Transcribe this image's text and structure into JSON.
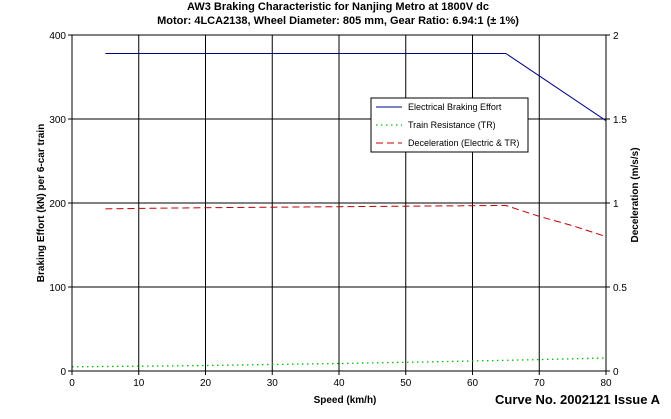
{
  "chart_data": {
    "type": "line",
    "title": "AW3 Braking Characteristic for Nanjing Metro at 1800V dc",
    "subtitle": "Motor: 4LCA2138, Wheel Diameter: 805 mm, Gear Ratio: 6.94:1 (± 1%)",
    "xlabel": "Speed (km/h)",
    "ylabel": "Braking Effort (kN) per 6-car train",
    "ylabel_right": "Deceleration (m/s/s)",
    "xlim": [
      0,
      80
    ],
    "ylim": [
      0,
      400
    ],
    "ylim_right": [
      0,
      2
    ],
    "x_ticks": [
      0,
      10,
      20,
      30,
      40,
      50,
      60,
      70,
      80
    ],
    "y_ticks": [
      0,
      100,
      200,
      300,
      400
    ],
    "y_ticks_right": [
      "0",
      "0.5",
      "1",
      "1.5",
      "2"
    ],
    "grid": true,
    "legend_position": "top-right",
    "footer": "Curve No. 2002121 Issue A",
    "series": [
      {
        "name": "Electrical Braking Effort",
        "axis": "left",
        "color": "#00008b",
        "style": "solid",
        "x": [
          5,
          65,
          80
        ],
        "y": [
          378,
          378,
          298
        ]
      },
      {
        "name": "Train Resistance (TR)",
        "axis": "left",
        "color": "#00c000",
        "style": "dotted",
        "x": [
          0,
          5,
          10,
          15,
          20,
          25,
          30,
          35,
          40,
          45,
          50,
          55,
          60,
          65,
          70,
          75,
          80
        ],
        "y": [
          5.0,
          5.3,
          5.7,
          6.1,
          6.6,
          7.1,
          7.7,
          8.3,
          8.9,
          9.6,
          10.3,
          11.1,
          11.9,
          12.7,
          13.6,
          14.5,
          15.5
        ]
      },
      {
        "name": "Deceleration (Electric & TR)",
        "axis": "right",
        "color": "#c00000",
        "style": "dashed",
        "x": [
          5,
          10,
          20,
          30,
          40,
          50,
          60,
          65,
          70,
          75,
          80
        ],
        "y": [
          0.965,
          0.968,
          0.972,
          0.975,
          0.978,
          0.981,
          0.984,
          0.985,
          0.92,
          0.865,
          0.8
        ]
      }
    ]
  }
}
